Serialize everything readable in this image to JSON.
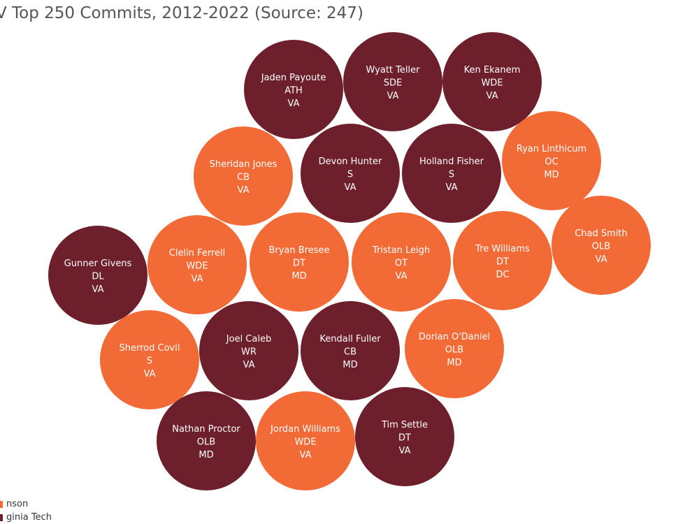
{
  "chart_data": {
    "type": "packed-bubble",
    "title": "V Top 250 Commits, 2012-2022 (Source: 247)",
    "colors": {
      "Virginia Tech": "#6e1f2c",
      "Other": "#f26a36"
    },
    "legend": {
      "placement": "bottom-left",
      "items": [
        {
          "label": "nson",
          "color_key": "Other"
        },
        {
          "label": "ginia Tech",
          "color_key": "Virginia Tech"
        }
      ]
    },
    "commits": [
      {
        "name": "Jaden Payoute",
        "position": "ATH",
        "state": "VA",
        "school": "Virginia Tech"
      },
      {
        "name": "Wyatt Teller",
        "position": "SDE",
        "state": "VA",
        "school": "Virginia Tech"
      },
      {
        "name": "Ken Ekanem",
        "position": "WDE",
        "state": "VA",
        "school": "Virginia Tech"
      },
      {
        "name": "Sheridan Jones",
        "position": "CB",
        "state": "VA",
        "school": "Other"
      },
      {
        "name": "Devon Hunter",
        "position": "S",
        "state": "VA",
        "school": "Virginia Tech"
      },
      {
        "name": "Holland Fisher",
        "position": "S",
        "state": "VA",
        "school": "Virginia Tech"
      },
      {
        "name": "Ryan Linthicum",
        "position": "OC",
        "state": "MD",
        "school": "Other"
      },
      {
        "name": "Chad Smith",
        "position": "OLB",
        "state": "VA",
        "school": "Other"
      },
      {
        "name": "Gunner Givens",
        "position": "DL",
        "state": "VA",
        "school": "Virginia Tech"
      },
      {
        "name": "Clelin Ferrell",
        "position": "WDE",
        "state": "VA",
        "school": "Other"
      },
      {
        "name": "Bryan Bresee",
        "position": "DT",
        "state": "MD",
        "school": "Other"
      },
      {
        "name": "Tristan Leigh",
        "position": "OT",
        "state": "VA",
        "school": "Other"
      },
      {
        "name": "Tre Williams",
        "position": "DT",
        "state": "DC",
        "school": "Other"
      },
      {
        "name": "Sherrod Covil",
        "position": "S",
        "state": "VA",
        "school": "Other"
      },
      {
        "name": "Joel Caleb",
        "position": "WR",
        "state": "VA",
        "school": "Virginia Tech"
      },
      {
        "name": "Kendall Fuller",
        "position": "CB",
        "state": "MD",
        "school": "Virginia Tech"
      },
      {
        "name": "Dorian O'Daniel",
        "position": "OLB",
        "state": "MD",
        "school": "Other"
      },
      {
        "name": "Nathan Proctor",
        "position": "OLB",
        "state": "MD",
        "school": "Virginia Tech"
      },
      {
        "name": "Jordan Williams",
        "position": "WDE",
        "state": "VA",
        "school": "Other"
      },
      {
        "name": "Tim Settle",
        "position": "DT",
        "state": "VA",
        "school": "Virginia Tech"
      }
    ]
  }
}
